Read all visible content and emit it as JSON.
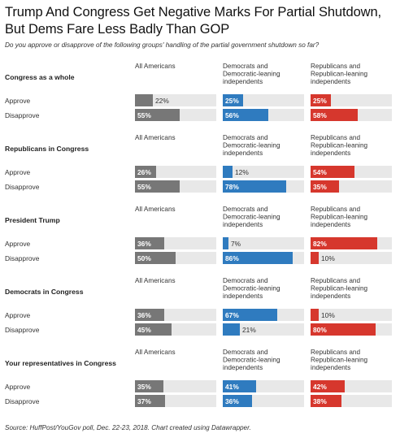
{
  "title": "Trump And Congress Get Negative Marks For Partial Shutdown, But Dems Fare Less Badly Than GOP",
  "subtitle": "Do you approve or disapprove of the following groups' handling of the partial government shutdown so far?",
  "source": "Source: HuffPost/YouGov poll, Dec. 22-23, 2018. Chart created using Datawrapper.",
  "colors": {
    "all": "#777777",
    "dem": "#2f7bbf",
    "rep": "#d6372d",
    "track": "#e8e8e8"
  },
  "chart_data": {
    "type": "bar",
    "value_suffix": "%",
    "xlim": [
      0,
      100
    ],
    "columns": [
      {
        "key": "all",
        "label": "All Americans"
      },
      {
        "key": "dem",
        "label": "Democrats and Democratic-leaning independents"
      },
      {
        "key": "rep",
        "label": "Republicans and Republican-leaning independents"
      }
    ],
    "groups": [
      {
        "label": "Congress as a whole",
        "rows": [
          {
            "label": "Approve",
            "values": [
              22,
              25,
              25
            ]
          },
          {
            "label": "Disapprove",
            "values": [
              55,
              56,
              58
            ]
          }
        ]
      },
      {
        "label": "Republicans in Congress",
        "rows": [
          {
            "label": "Approve",
            "values": [
              26,
              12,
              54
            ]
          },
          {
            "label": "Disapprove",
            "values": [
              55,
              78,
              35
            ]
          }
        ]
      },
      {
        "label": "President Trump",
        "rows": [
          {
            "label": "Approve",
            "values": [
              36,
              7,
              82
            ]
          },
          {
            "label": "Disapprove",
            "values": [
              50,
              86,
              10
            ]
          }
        ]
      },
      {
        "label": "Democrats in Congress",
        "rows": [
          {
            "label": "Approve",
            "values": [
              36,
              67,
              10
            ]
          },
          {
            "label": "Disapprove",
            "values": [
              45,
              21,
              80
            ]
          }
        ]
      },
      {
        "label": "Your representatives in Congress",
        "rows": [
          {
            "label": "Approve",
            "values": [
              35,
              41,
              42
            ]
          },
          {
            "label": "Disapprove",
            "values": [
              37,
              36,
              38
            ]
          }
        ]
      }
    ]
  }
}
